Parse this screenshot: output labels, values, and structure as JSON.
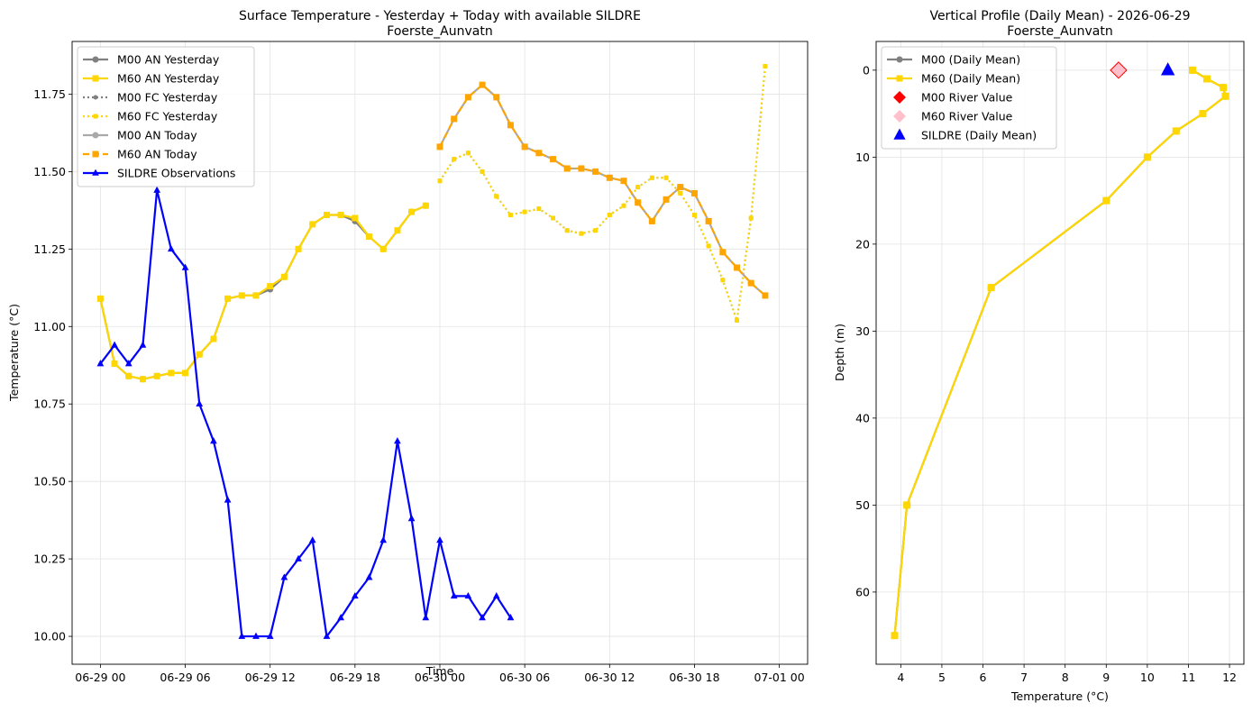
{
  "chart_data": [
    {
      "type": "line",
      "title": "Surface Temperature - Yesterday + Today with available SILDRE",
      "subtitle": "Foerste_Aunvatn",
      "xlabel": "Time",
      "ylabel": "Temperature (°C)",
      "x_range_hours": [
        -2.0,
        50.0
      ],
      "ylim": [
        9.91,
        11.92
      ],
      "x_ticks": [
        {
          "hour": 0,
          "label": "06-29 00"
        },
        {
          "hour": 6,
          "label": "06-29 06"
        },
        {
          "hour": 12,
          "label": "06-29 12"
        },
        {
          "hour": 18,
          "label": "06-29 18"
        },
        {
          "hour": 24,
          "label": "06-30 00"
        },
        {
          "hour": 30,
          "label": "06-30 06"
        },
        {
          "hour": 36,
          "label": "06-30 12"
        },
        {
          "hour": 42,
          "label": "06-30 18"
        },
        {
          "hour": 48,
          "label": "07-01 00"
        }
      ],
      "y_ticks": [
        "10.00",
        "10.25",
        "10.50",
        "10.75",
        "11.00",
        "11.25",
        "11.50",
        "11.75"
      ],
      "grid": true,
      "legend_position": "upper-left",
      "series": [
        {
          "name": "M00 AN Yesterday",
          "color": "#808080",
          "style": "solid",
          "marker": "circle",
          "x": [
            0,
            1,
            2,
            3,
            4,
            5,
            6,
            7,
            8,
            9,
            10,
            11,
            12,
            13,
            14,
            15,
            16,
            17,
            18,
            19,
            20,
            21,
            22,
            23
          ],
          "y": [
            11.09,
            10.88,
            10.84,
            10.83,
            10.84,
            10.85,
            10.85,
            10.91,
            10.96,
            11.09,
            11.1,
            11.1,
            11.12,
            11.16,
            11.25,
            11.33,
            11.36,
            11.36,
            11.34,
            11.29,
            11.25,
            11.31,
            11.37,
            11.39
          ]
        },
        {
          "name": "M60 AN Yesterday",
          "color": "#FFD700",
          "style": "solid",
          "marker": "square",
          "x": [
            0,
            1,
            2,
            3,
            4,
            5,
            6,
            7,
            8,
            9,
            10,
            11,
            12,
            13,
            14,
            15,
            16,
            17,
            18,
            19,
            20,
            21,
            22,
            23
          ],
          "y": [
            11.09,
            10.88,
            10.84,
            10.83,
            10.84,
            10.85,
            10.85,
            10.91,
            10.96,
            11.09,
            11.1,
            11.1,
            11.13,
            11.16,
            11.25,
            11.33,
            11.36,
            11.36,
            11.35,
            11.29,
            11.25,
            11.31,
            11.37,
            11.39
          ]
        },
        {
          "name": "M00 FC Yesterday",
          "color": "#808080",
          "style": "dotted",
          "marker": "circle",
          "x": [
            24,
            25,
            26,
            27,
            28,
            29,
            30,
            31,
            32,
            33,
            34,
            35,
            36,
            37,
            38,
            39,
            40,
            41,
            42,
            43,
            44,
            45,
            46,
            47
          ],
          "y": [
            11.47,
            11.54,
            11.56,
            11.5,
            11.42,
            11.36,
            11.37,
            11.38,
            11.35,
            11.31,
            11.3,
            11.31,
            11.36,
            11.39,
            11.45,
            11.48,
            11.48,
            11.43,
            11.36,
            11.26,
            11.15,
            11.02,
            11.35,
            11.84
          ]
        },
        {
          "name": "M60 FC Yesterday",
          "color": "#FFD700",
          "style": "dotted",
          "marker": "square",
          "x": [
            24,
            25,
            26,
            27,
            28,
            29,
            30,
            31,
            32,
            33,
            34,
            35,
            36,
            37,
            38,
            39,
            40,
            41,
            42,
            43,
            44,
            45,
            46,
            47
          ],
          "y": [
            11.47,
            11.54,
            11.56,
            11.5,
            11.42,
            11.36,
            11.37,
            11.38,
            11.35,
            11.31,
            11.3,
            11.31,
            11.36,
            11.39,
            11.45,
            11.48,
            11.48,
            11.43,
            11.36,
            11.26,
            11.15,
            11.02,
            11.35,
            11.84
          ]
        },
        {
          "name": "M00 AN Today",
          "color": "#A9A9A9",
          "style": "solid",
          "marker": "circle",
          "x": [
            24,
            25,
            26,
            27,
            28,
            29,
            30,
            31,
            32,
            33,
            34,
            35,
            36,
            37,
            38,
            39,
            40,
            41,
            42,
            43,
            44,
            45,
            46,
            47
          ],
          "y": [
            11.58,
            11.67,
            11.74,
            11.78,
            11.74,
            11.65,
            11.58,
            11.56,
            11.54,
            11.51,
            11.51,
            11.5,
            11.48,
            11.47,
            11.4,
            11.34,
            11.41,
            11.45,
            11.43,
            11.34,
            11.24,
            11.19,
            11.14,
            11.1
          ]
        },
        {
          "name": "M60 AN Today",
          "color": "#FFA500",
          "style": "dashed",
          "marker": "square",
          "x": [
            24,
            25,
            26,
            27,
            28,
            29,
            30,
            31,
            32,
            33,
            34,
            35,
            36,
            37,
            38,
            39,
            40,
            41,
            42,
            43,
            44,
            45,
            46,
            47
          ],
          "y": [
            11.58,
            11.67,
            11.74,
            11.78,
            11.74,
            11.65,
            11.58,
            11.56,
            11.54,
            11.51,
            11.51,
            11.5,
            11.48,
            11.47,
            11.4,
            11.34,
            11.41,
            11.45,
            11.43,
            11.34,
            11.24,
            11.19,
            11.14,
            11.1
          ]
        },
        {
          "name": "SILDRE Observations",
          "color": "#0000FF",
          "style": "solid",
          "marker": "triangle",
          "x": [
            0,
            1,
            2,
            3,
            4,
            5,
            6,
            7,
            8,
            9,
            10,
            11,
            12,
            13,
            14,
            15,
            16,
            17,
            18,
            19,
            20,
            21,
            22,
            23,
            24,
            25,
            26,
            27,
            28,
            29
          ],
          "y": [
            10.88,
            10.94,
            10.88,
            10.94,
            11.44,
            11.25,
            11.19,
            10.75,
            10.63,
            10.44,
            10.0,
            10.0,
            10.0,
            10.19,
            10.25,
            10.31,
            10.0,
            10.06,
            10.13,
            10.19,
            10.31,
            10.63,
            10.38,
            10.06,
            10.31,
            10.13,
            10.13,
            10.06,
            10.13,
            10.06
          ]
        }
      ]
    },
    {
      "type": "line",
      "title": "Vertical Profile (Daily Mean) - 2026-06-29",
      "subtitle": "Foerste_Aunvatn",
      "xlabel": "Temperature (°C)",
      "ylabel": "Depth (m)",
      "xlim": [
        3.4,
        12.35
      ],
      "ylim": [
        68.3,
        -3.3
      ],
      "y_inverted": true,
      "x_ticks": [
        "4",
        "5",
        "6",
        "7",
        "8",
        "9",
        "10",
        "11",
        "12"
      ],
      "y_ticks": [
        "0",
        "10",
        "20",
        "30",
        "40",
        "50",
        "60"
      ],
      "grid": true,
      "legend_position": "upper-left",
      "series": [
        {
          "name": "M00 (Daily Mean)",
          "color": "#808080",
          "style": "solid",
          "marker": "circle",
          "x": [
            11.1,
            11.45,
            11.85,
            11.9,
            11.35,
            10.7,
            10.0,
            9.0,
            6.2,
            4.15,
            3.85
          ],
          "y": [
            0,
            1,
            2,
            3,
            5,
            7,
            10,
            15,
            25,
            50,
            65
          ]
        },
        {
          "name": "M60 (Daily Mean)",
          "color": "#FFD700",
          "style": "solid",
          "marker": "square",
          "x": [
            11.1,
            11.45,
            11.85,
            11.9,
            11.35,
            10.7,
            10.0,
            9.0,
            6.2,
            4.15,
            3.85
          ],
          "y": [
            0,
            1,
            2,
            3,
            5,
            7,
            10,
            15,
            25,
            50,
            65
          ]
        },
        {
          "name": "M00 River Value",
          "color": "#FF0000",
          "marker": "diamond",
          "x": [
            9.3
          ],
          "y": [
            0
          ]
        },
        {
          "name": "M60 River Value",
          "color": "#FFC0CB",
          "marker": "diamond",
          "x": [
            9.3
          ],
          "y": [
            0
          ]
        },
        {
          "name": "SILDRE (Daily Mean)",
          "color": "#0000FF",
          "marker": "triangle",
          "x": [
            10.5
          ],
          "y": [
            0
          ]
        }
      ]
    }
  ]
}
